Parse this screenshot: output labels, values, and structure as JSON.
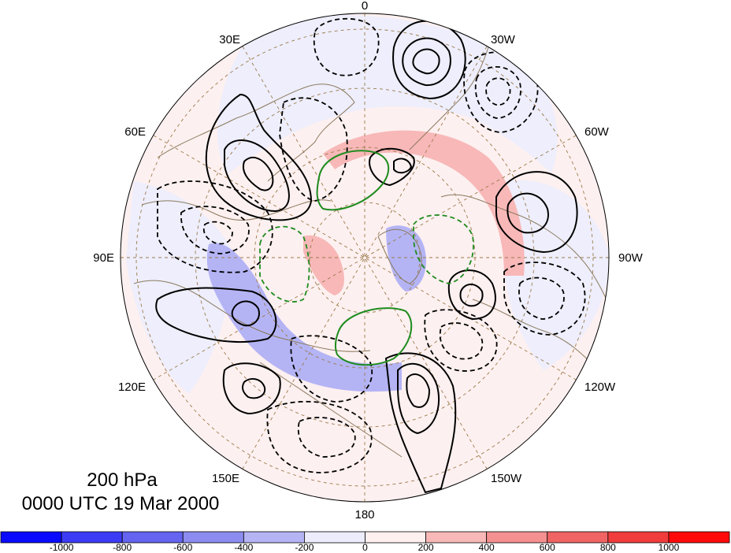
{
  "map": {
    "level": "200 hPa",
    "valid_time": "0000 UTC 19 Mar 2000",
    "longitude_labels": {
      "top": "0",
      "bottom": "180",
      "left": "90E",
      "right": "90W",
      "upper_left_30": "30E",
      "upper_left_60": "60E",
      "upper_right_30": "30W",
      "upper_right_60": "60W",
      "lower_left_120": "120E",
      "lower_left_150": "150E",
      "lower_right_120": "120W",
      "lower_right_150": "150W"
    }
  },
  "colorbar": {
    "colors": [
      "#0a0aff",
      "#3c3cf5",
      "#6464f0",
      "#8c8cf0",
      "#b4b4f5",
      "#ececfc",
      "#fff0f0",
      "#f8b8b8",
      "#f49090",
      "#f06464",
      "#f03c3c",
      "#ff0a0a"
    ],
    "tick_labels": [
      "-1000",
      "-800",
      "-600",
      "-400",
      "-200",
      "0",
      "200",
      "400",
      "600",
      "800",
      "1000"
    ]
  },
  "style": {
    "contour_positive": "#000000",
    "contour_green": "#1e8c1e",
    "coastline": "#8b7a5e",
    "graticule": "#9a7a4a"
  }
}
